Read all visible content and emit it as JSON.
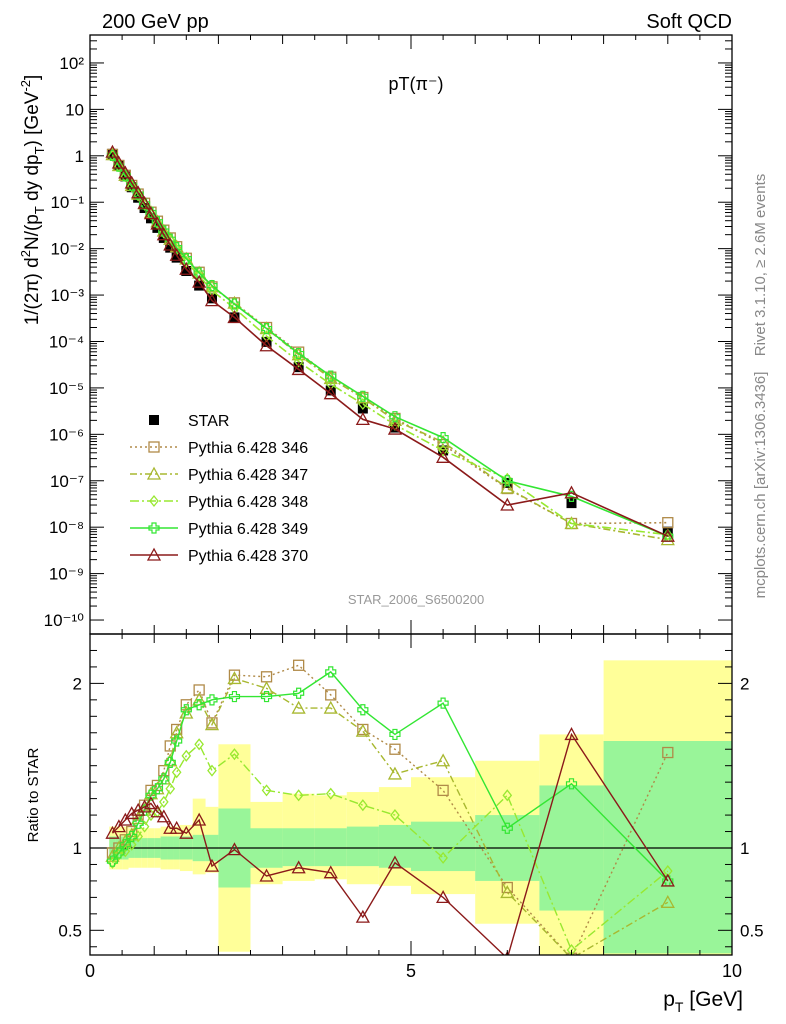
{
  "header": {
    "left": "200 GeV pp",
    "right": "Soft QCD",
    "plot_title": "pT(π⁻)",
    "watermark": "STAR_2006_S6500200",
    "side_top": "Rivet 3.1.10, ≥ 2.6M events",
    "side_bottom": "mcplots.cern.ch [arXiv:1306.3436]"
  },
  "colors": {
    "star": "#000000",
    "p346": "#b08a48",
    "p347": "#a8b830",
    "p348": "#98e830",
    "p349": "#33e633",
    "p370": "#8b1a1a",
    "band_outer": "#ffff99",
    "band_inner": "#99f599"
  },
  "chart_data": [
    {
      "type": "line",
      "title": "pT(π⁻)",
      "xlabel": "p_T [GeV]",
      "ylabel": "1/(2π) d²N/(p_T dy dp_T) [GeV⁻²]",
      "xlim": [
        0,
        10
      ],
      "ylim": [
        5e-11,
        400
      ],
      "log_y": true,
      "x_ticks": [
        "0",
        "5",
        "10"
      ],
      "y_ticks": [
        "10⁻¹⁰",
        "10⁻⁹",
        "10⁻⁸",
        "10⁻⁷",
        "10⁻⁶",
        "10⁻⁵",
        "10⁻⁴",
        "10⁻³",
        "10⁻²",
        "10⁻¹",
        "1",
        "10",
        "10²"
      ],
      "legend_position": "bottom-left",
      "x": [
        0.35,
        0.45,
        0.55,
        0.65,
        0.75,
        0.85,
        0.95,
        1.05,
        1.15,
        1.25,
        1.35,
        1.5,
        1.7,
        1.9,
        2.25,
        2.75,
        3.25,
        3.75,
        4.25,
        4.75,
        5.5,
        6.5,
        7.5,
        9.0
      ],
      "series": [
        {
          "name": "STAR",
          "color_key": "star",
          "marker": "square-filled",
          "values": [
            1.1,
            0.62,
            0.36,
            0.21,
            0.125,
            0.075,
            0.045,
            0.028,
            0.017,
            0.0105,
            0.0064,
            0.0033,
            0.0016,
            0.00085,
            0.00033,
            9.8e-05,
            2.8e-05,
            8.8e-06,
            3.6e-06,
            1.4e-06,
            4.5e-07,
            9e-08,
            3.3e-08,
            8e-09
          ]
        },
        {
          "name": "Pythia 6.428 346",
          "color_key": "p346",
          "marker": "square-open",
          "dash": "2,3",
          "values": [
            1.07,
            0.62,
            0.38,
            0.23,
            0.15,
            0.095,
            0.061,
            0.039,
            0.025,
            0.017,
            0.011,
            0.0062,
            0.0031,
            0.0015,
            0.00068,
            0.0002,
            5.9e-05,
            1.7e-05,
            6.2e-06,
            2.2e-06,
            6e-07,
            6.8e-08,
            1.2e-08,
            1.25e-08
          ]
        },
        {
          "name": "Pythia 6.428 347",
          "color_key": "p347",
          "marker": "triangle-open",
          "dash": "7,3,2,3",
          "values": [
            1.06,
            0.62,
            0.38,
            0.23,
            0.15,
            0.093,
            0.06,
            0.038,
            0.024,
            0.016,
            0.011,
            0.006,
            0.003,
            0.0015,
            0.00067,
            0.00019,
            5.2e-05,
            1.6e-05,
            6.1e-06,
            2e-06,
            6.8e-07,
            7e-08,
            1.2e-08,
            5.4e-09
          ]
        },
        {
          "name": "Pythia 6.428 348",
          "color_key": "p348",
          "marker": "diamond-open",
          "dash": "9,3,2,3",
          "values": [
            1.0,
            0.6,
            0.36,
            0.22,
            0.14,
            0.088,
            0.055,
            0.035,
            0.022,
            0.015,
            0.0095,
            0.0052,
            0.0026,
            0.00125,
            0.00052,
            0.00013,
            3.7e-05,
            1.2e-05,
            4.5e-06,
            1.6e-06,
            4.5e-07,
            1.1e-07,
            1.2e-08,
            6.9e-09
          ]
        },
        {
          "name": "Pythia 6.428 349",
          "color_key": "p349",
          "marker": "cross-open",
          "dash": "",
          "values": [
            1.02,
            0.6,
            0.37,
            0.23,
            0.15,
            0.092,
            0.06,
            0.038,
            0.024,
            0.016,
            0.0105,
            0.0061,
            0.003,
            0.0016,
            0.00064,
            0.00019,
            5.5e-05,
            1.8e-05,
            6.6e-06,
            2.4e-06,
            8.5e-07,
            1e-07,
            4.6e-08,
            6.4e-09
          ]
        },
        {
          "name": "Pythia 6.428 370",
          "color_key": "p370",
          "marker": "triangle-open",
          "dash": "",
          "values": [
            1.2,
            0.7,
            0.43,
            0.26,
            0.16,
            0.095,
            0.057,
            0.034,
            0.02,
            0.012,
            0.0072,
            0.0036,
            0.0019,
            0.00076,
            0.00033,
            8.1e-05,
            2.5e-05,
            7.5e-06,
            2.1e-06,
            1.3e-06,
            3.2e-07,
            3e-08,
            5.5e-08,
            6.4e-09
          ]
        }
      ]
    },
    {
      "type": "line",
      "ylabel": "Ratio to STAR",
      "xlabel": "p_T [GeV]",
      "xlim": [
        0,
        10
      ],
      "ylim": [
        0.35,
        2.3
      ],
      "y_ticks": [
        "0.5",
        "1",
        "2"
      ],
      "x_ticks": [
        "0",
        "5",
        "10"
      ],
      "x": [
        0.35,
        0.45,
        0.55,
        0.65,
        0.75,
        0.85,
        0.95,
        1.05,
        1.15,
        1.25,
        1.35,
        1.5,
        1.7,
        1.9,
        2.25,
        2.75,
        3.25,
        3.75,
        4.25,
        4.75,
        5.5,
        6.5,
        7.5,
        9.0
      ],
      "band_edges": [
        0.3,
        0.4,
        0.5,
        0.6,
        0.7,
        0.8,
        0.9,
        1.0,
        1.1,
        1.2,
        1.3,
        1.4,
        1.6,
        1.8,
        2.0,
        2.5,
        3.0,
        3.5,
        4.0,
        4.5,
        5.0,
        6.0,
        7.0,
        8.0,
        10.0
      ],
      "band_outer": [
        [
          0.87,
          1.13
        ],
        [
          0.87,
          1.13
        ],
        [
          0.87,
          1.13
        ],
        [
          0.88,
          1.12
        ],
        [
          0.88,
          1.12
        ],
        [
          0.88,
          1.12
        ],
        [
          0.88,
          1.12
        ],
        [
          0.88,
          1.12
        ],
        [
          0.87,
          1.13
        ],
        [
          0.87,
          1.13
        ],
        [
          0.87,
          1.13
        ],
        [
          0.86,
          1.14
        ],
        [
          0.84,
          1.3
        ],
        [
          0.85,
          1.25
        ],
        [
          0.37,
          1.63
        ],
        [
          0.78,
          1.28
        ],
        [
          0.8,
          1.33
        ],
        [
          0.81,
          1.32
        ],
        [
          0.78,
          1.34
        ],
        [
          0.77,
          1.37
        ],
        [
          0.72,
          1.43
        ],
        [
          0.54,
          1.53
        ],
        [
          0.35,
          1.69
        ],
        [
          0.35,
          2.14
        ],
        [
          0.35,
          2.14
        ]
      ],
      "band_inner": [
        [
          0.93,
          1.07
        ],
        [
          0.93,
          1.07
        ],
        [
          0.93,
          1.07
        ],
        [
          0.94,
          1.06
        ],
        [
          0.94,
          1.06
        ],
        [
          0.94,
          1.06
        ],
        [
          0.94,
          1.06
        ],
        [
          0.94,
          1.06
        ],
        [
          0.93,
          1.07
        ],
        [
          0.93,
          1.07
        ],
        [
          0.93,
          1.07
        ],
        [
          0.93,
          1.07
        ],
        [
          0.92,
          1.08
        ],
        [
          0.92,
          1.08
        ],
        [
          0.76,
          1.24
        ],
        [
          0.88,
          1.12
        ],
        [
          0.89,
          1.12
        ],
        [
          0.89,
          1.12
        ],
        [
          0.89,
          1.13
        ],
        [
          0.88,
          1.14
        ],
        [
          0.86,
          1.16
        ],
        [
          0.8,
          1.2
        ],
        [
          0.62,
          1.38
        ],
        [
          0.36,
          1.65
        ],
        [
          0.36,
          1.65
        ]
      ],
      "series": [
        {
          "name": "Pythia 6.428 346",
          "color_key": "p346",
          "marker": "square-open",
          "dash": "2,3",
          "values": [
            0.97,
            1.0,
            1.05,
            1.1,
            1.2,
            1.26,
            1.35,
            1.38,
            1.47,
            1.62,
            1.72,
            1.87,
            1.96,
            1.76,
            2.05,
            2.04,
            2.11,
            1.93,
            1.72,
            1.6,
            1.35,
            0.76,
            0.33,
            1.58
          ]
        },
        {
          "name": "Pythia 6.428 347",
          "color_key": "p347",
          "marker": "triangle-open",
          "dash": "7,3,2,3",
          "values": [
            0.95,
            1.0,
            1.04,
            1.08,
            1.18,
            1.23,
            1.33,
            1.36,
            1.42,
            1.53,
            1.7,
            1.82,
            1.9,
            1.75,
            2.03,
            1.97,
            1.85,
            1.85,
            1.71,
            1.45,
            1.53,
            0.73,
            0.33,
            0.67
          ]
        },
        {
          "name": "Pythia 6.428 348",
          "color_key": "p348",
          "marker": "diamond-open",
          "dash": "9,3,2,3",
          "values": [
            0.91,
            0.96,
            0.98,
            1.02,
            1.07,
            1.13,
            1.2,
            1.22,
            1.28,
            1.36,
            1.46,
            1.56,
            1.63,
            1.47,
            1.57,
            1.35,
            1.32,
            1.33,
            1.26,
            1.2,
            0.94,
            1.32,
            0.38,
            0.86
          ]
        },
        {
          "name": "Pythia 6.428 349",
          "color_key": "p349",
          "marker": "cross-open",
          "dash": "",
          "values": [
            0.92,
            0.97,
            1.02,
            1.07,
            1.15,
            1.23,
            1.32,
            1.36,
            1.42,
            1.52,
            1.65,
            1.84,
            1.87,
            1.9,
            1.92,
            1.92,
            1.94,
            2.07,
            1.84,
            1.69,
            1.88,
            1.12,
            1.39,
            0.8
          ]
        },
        {
          "name": "Pythia 6.428 370",
          "color_key": "p370",
          "marker": "triangle-open",
          "dash": "",
          "values": [
            1.09,
            1.13,
            1.17,
            1.21,
            1.23,
            1.25,
            1.27,
            1.22,
            1.19,
            1.12,
            1.12,
            1.09,
            1.17,
            0.89,
            0.99,
            0.83,
            0.88,
            0.85,
            0.58,
            0.91,
            0.7,
            0.33,
            1.69,
            0.8
          ]
        }
      ]
    }
  ]
}
